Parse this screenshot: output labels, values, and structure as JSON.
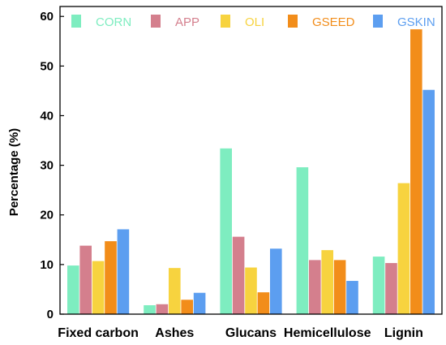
{
  "chart_data": {
    "type": "bar",
    "title": "",
    "xlabel": "",
    "ylabel": "Percentage (%)",
    "ylim": [
      0,
      62
    ],
    "yticks": [
      0,
      10,
      20,
      30,
      40,
      50,
      60
    ],
    "grid": false,
    "legend_position": "top",
    "categories": [
      "Fixed carbon",
      "Ashes",
      "Glucans",
      "Hemicellulose",
      "Lignin"
    ],
    "series": [
      {
        "name": "CORN",
        "color": "#7eedc0",
        "values": [
          9.8,
          1.8,
          33.4,
          29.6,
          11.6
        ]
      },
      {
        "name": "APP",
        "color": "#d47f8d",
        "values": [
          13.8,
          2.0,
          15.6,
          10.9,
          10.3
        ]
      },
      {
        "name": "OLI",
        "color": "#f7d33f",
        "values": [
          10.7,
          9.3,
          9.4,
          12.9,
          26.4
        ]
      },
      {
        "name": "GSEED",
        "color": "#f28d1a",
        "values": [
          14.7,
          2.9,
          4.4,
          10.9,
          57.4
        ]
      },
      {
        "name": "GSKIN",
        "color": "#5c9ef0",
        "values": [
          17.1,
          4.3,
          13.2,
          6.7,
          45.2
        ]
      }
    ]
  }
}
